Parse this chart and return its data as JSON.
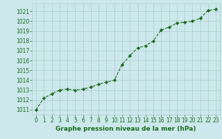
{
  "x": [
    0,
    1,
    2,
    3,
    4,
    5,
    6,
    7,
    8,
    9,
    10,
    11,
    12,
    13,
    14,
    15,
    16,
    17,
    18,
    19,
    20,
    21,
    22,
    23
  ],
  "y": [
    1011.0,
    1012.2,
    1012.6,
    1013.0,
    1013.1,
    1013.0,
    1013.1,
    1013.3,
    1013.6,
    1013.8,
    1014.0,
    1015.6,
    1016.5,
    1017.3,
    1017.5,
    1018.0,
    1019.1,
    1019.4,
    1019.8,
    1019.9,
    1020.0,
    1020.3,
    1021.1,
    1021.2
  ],
  "line_color": "#1a6b1a",
  "marker_color": "#1a6b1a",
  "bg_color": "#cce8ec",
  "grid_color": "#aacccc",
  "xlabel": "Graphe pression niveau de la mer (hPa)",
  "xlabel_color": "#1a6b1a",
  "tick_color": "#1a6b1a",
  "ylim": [
    1010.5,
    1021.8
  ],
  "xlim": [
    -0.5,
    23.5
  ],
  "yticks": [
    1011,
    1012,
    1013,
    1014,
    1015,
    1016,
    1017,
    1018,
    1019,
    1020,
    1021
  ],
  "xticks": [
    0,
    1,
    2,
    3,
    4,
    5,
    6,
    7,
    8,
    9,
    10,
    11,
    12,
    13,
    14,
    15,
    16,
    17,
    18,
    19,
    20,
    21,
    22,
    23
  ],
  "tick_labelsize": 5.5,
  "xlabel_fontsize": 6.5
}
